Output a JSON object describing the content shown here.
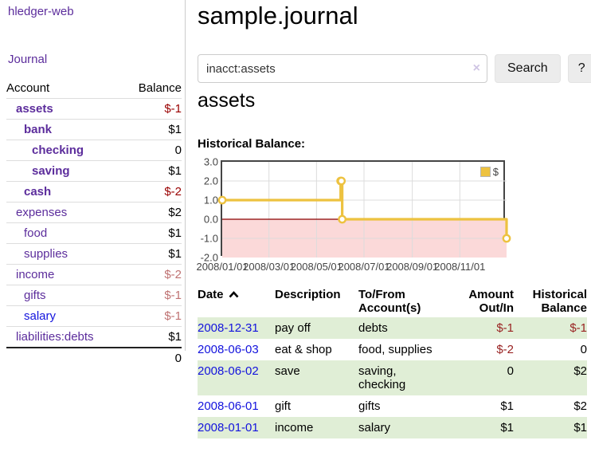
{
  "sidebar": {
    "brand": "hledger-web",
    "journal_link": "Journal",
    "table": {
      "account_header": "Account",
      "balance_header": "Balance",
      "rows": [
        {
          "name": "assets",
          "balance": "$-1"
        },
        {
          "name": "bank",
          "balance": "$1"
        },
        {
          "name": "checking",
          "balance": "0"
        },
        {
          "name": "saving",
          "balance": "$1"
        },
        {
          "name": "cash",
          "balance": "$-2"
        },
        {
          "name": "expenses",
          "balance": "$2"
        },
        {
          "name": "food",
          "balance": "$1"
        },
        {
          "name": "supplies",
          "balance": "$1"
        },
        {
          "name": "income",
          "balance": "$-2"
        },
        {
          "name": "gifts",
          "balance": "$-1"
        },
        {
          "name": "salary",
          "balance": "$-1"
        },
        {
          "name": "liabilities:debts",
          "balance": "$1"
        }
      ],
      "total": "0"
    }
  },
  "header": {
    "title": "sample.journal"
  },
  "search": {
    "query": "inacct:assets",
    "clear_icon": "×",
    "button_label": "Search",
    "help_label": "?"
  },
  "main": {
    "account_title": "assets",
    "chart_label": "Historical Balance:"
  },
  "register": {
    "headers": {
      "date": "Date",
      "description": "Description",
      "accounts": "To/From Account(s)",
      "amount": "Amount Out/In",
      "balance": "Historical Balance"
    },
    "rows": [
      {
        "date": "2008-12-31",
        "description": "pay off",
        "accounts": "debts",
        "amount": "$-1",
        "balance": "$-1"
      },
      {
        "date": "2008-06-03",
        "description": "eat & shop",
        "accounts": "food, supplies",
        "amount": "$-2",
        "balance": "0"
      },
      {
        "date": "2008-06-02",
        "description": "save",
        "accounts": "saving, checking",
        "amount": "0",
        "balance": "$2"
      },
      {
        "date": "2008-06-01",
        "description": "gift",
        "accounts": "gifts",
        "amount": "$1",
        "balance": "$2"
      },
      {
        "date": "2008-01-01",
        "description": "income",
        "accounts": "salary",
        "amount": "$1",
        "balance": "$1"
      }
    ]
  },
  "chart_data": {
    "type": "line",
    "step": true,
    "title": "Historical Balance:",
    "legend": "$",
    "legend_position": "top-right",
    "grid": true,
    "x_range": [
      "2008-01-01",
      "2008-12-31"
    ],
    "ylim": [
      -2,
      3
    ],
    "yticks": [
      "3.0",
      "2.0",
      "1.0",
      "0.0",
      "-1.0",
      "-2.0"
    ],
    "xticks": [
      "2008/01/01",
      "2008/03/01",
      "2008/05/01",
      "2008/07/01",
      "2008/09/01",
      "2008/11/01"
    ],
    "series": [
      {
        "name": "$",
        "color": "#EDC240",
        "points": [
          [
            "2008-01-01",
            1
          ],
          [
            "2008-06-01",
            2
          ],
          [
            "2008-06-02",
            2
          ],
          [
            "2008-06-03",
            0
          ],
          [
            "2008-12-31",
            -1
          ]
        ]
      }
    ],
    "negative_region_fill": "#fbd9d9",
    "zero_line_color": "#8b0000",
    "grid_color": "#dcdcdc",
    "border_color": "#454545"
  }
}
